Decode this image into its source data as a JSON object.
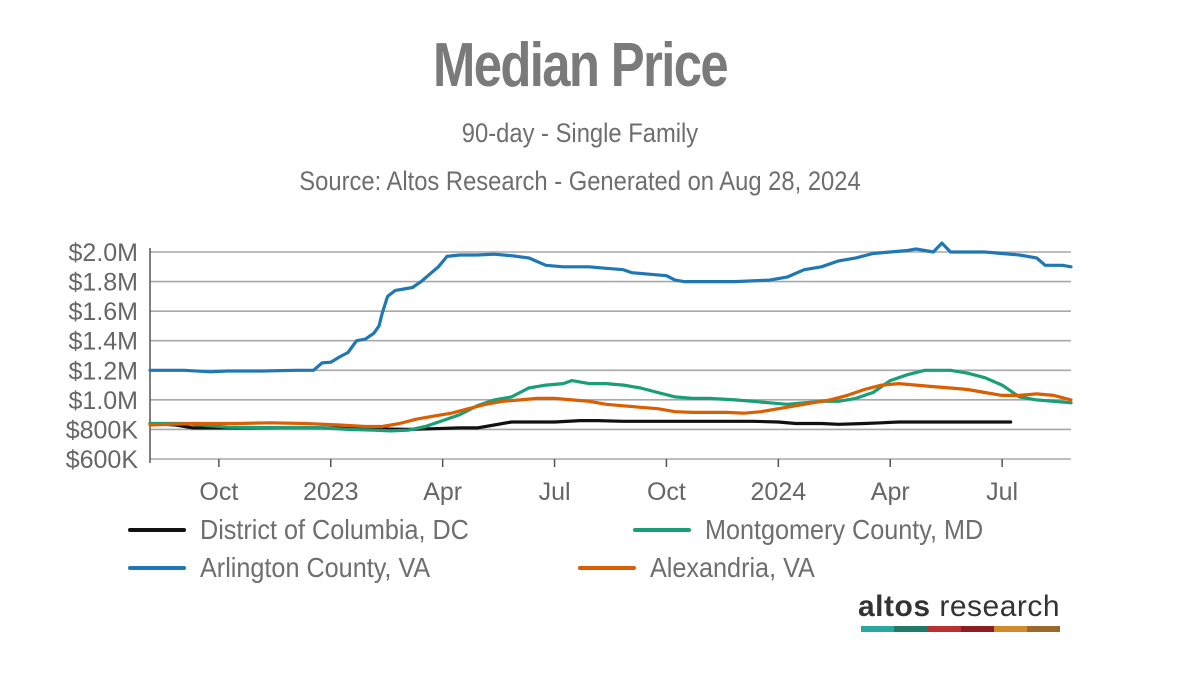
{
  "chart_data": {
    "type": "line",
    "title": "Median Price",
    "subtitle": "90-day - Single Family",
    "source": "Source: Altos Research - Generated on Aug 28, 2024",
    "xlabel": "",
    "ylabel": "",
    "grid": true,
    "ylim": [
      600000,
      2000000
    ],
    "yticks": [
      600000,
      800000,
      1000000,
      1200000,
      1400000,
      1600000,
      1800000,
      2000000
    ],
    "ytick_labels": [
      "$600K",
      "$800K",
      "$1.0M",
      "$1.2M",
      "$1.4M",
      "$1.6M",
      "$1.8M",
      "$2.0M"
    ],
    "xlim_week": [
      0,
      107
    ],
    "xticks": [
      {
        "label": "Oct",
        "week": 8
      },
      {
        "label": "2023",
        "week": 21
      },
      {
        "label": "Apr",
        "week": 34
      },
      {
        "label": "Jul",
        "week": 47
      },
      {
        "label": "Oct",
        "week": 60
      },
      {
        "label": "2024",
        "week": 73
      },
      {
        "label": "Apr",
        "week": 86
      },
      {
        "label": "Jul",
        "week": 99
      }
    ],
    "legend_position": "bottom",
    "series": [
      {
        "name": "District of Columbia, DC",
        "color": "#111111",
        "points": [
          [
            0,
            840000
          ],
          [
            3,
            830000
          ],
          [
            5,
            810000
          ],
          [
            9,
            810000
          ],
          [
            12,
            810000
          ],
          [
            20,
            810000
          ],
          [
            25,
            805000
          ],
          [
            30,
            800000
          ],
          [
            33,
            805000
          ],
          [
            36,
            810000
          ],
          [
            38,
            810000
          ],
          [
            40,
            830000
          ],
          [
            42,
            850000
          ],
          [
            47,
            850000
          ],
          [
            50,
            860000
          ],
          [
            52,
            860000
          ],
          [
            55,
            855000
          ],
          [
            60,
            855000
          ],
          [
            65,
            855000
          ],
          [
            70,
            855000
          ],
          [
            73,
            850000
          ],
          [
            75,
            840000
          ],
          [
            78,
            840000
          ],
          [
            80,
            835000
          ],
          [
            83,
            840000
          ],
          [
            85,
            845000
          ],
          [
            87,
            850000
          ],
          [
            92,
            850000
          ],
          [
            95,
            850000
          ],
          [
            99,
            850000
          ],
          [
            100,
            850000
          ]
        ]
      },
      {
        "name": "Montgomery County, MD",
        "color": "#1a9e77",
        "points": [
          [
            0,
            840000
          ],
          [
            4,
            840000
          ],
          [
            9,
            815000
          ],
          [
            15,
            810000
          ],
          [
            20,
            810000
          ],
          [
            23,
            800000
          ],
          [
            26,
            795000
          ],
          [
            28,
            790000
          ],
          [
            30,
            795000
          ],
          [
            32,
            820000
          ],
          [
            34,
            860000
          ],
          [
            36,
            900000
          ],
          [
            38,
            960000
          ],
          [
            40,
            1000000
          ],
          [
            42,
            1020000
          ],
          [
            44,
            1080000
          ],
          [
            46,
            1100000
          ],
          [
            48,
            1110000
          ],
          [
            49,
            1130000
          ],
          [
            51,
            1110000
          ],
          [
            53,
            1110000
          ],
          [
            55,
            1100000
          ],
          [
            57,
            1080000
          ],
          [
            59,
            1050000
          ],
          [
            61,
            1020000
          ],
          [
            63,
            1010000
          ],
          [
            65,
            1010000
          ],
          [
            68,
            1000000
          ],
          [
            70,
            990000
          ],
          [
            72,
            980000
          ],
          [
            74,
            970000
          ],
          [
            76,
            980000
          ],
          [
            78,
            990000
          ],
          [
            80,
            990000
          ],
          [
            82,
            1010000
          ],
          [
            84,
            1050000
          ],
          [
            86,
            1130000
          ],
          [
            88,
            1170000
          ],
          [
            90,
            1200000
          ],
          [
            93,
            1200000
          ],
          [
            95,
            1180000
          ],
          [
            97,
            1150000
          ],
          [
            99,
            1100000
          ],
          [
            101,
            1020000
          ],
          [
            103,
            1000000
          ],
          [
            105,
            990000
          ],
          [
            107,
            980000
          ]
        ]
      },
      {
        "name": "Arlington County, VA",
        "color": "#1f77b4",
        "points": [
          [
            0,
            1200000
          ],
          [
            4,
            1200000
          ],
          [
            7,
            1190000
          ],
          [
            9,
            1195000
          ],
          [
            13,
            1195000
          ],
          [
            17,
            1200000
          ],
          [
            19,
            1200000
          ],
          [
            20,
            1250000
          ],
          [
            21,
            1255000
          ],
          [
            22,
            1290000
          ],
          [
            23,
            1320000
          ],
          [
            24,
            1400000
          ],
          [
            25,
            1410000
          ],
          [
            26,
            1450000
          ],
          [
            26.6,
            1500000
          ],
          [
            27,
            1590000
          ],
          [
            27.6,
            1700000
          ],
          [
            28.5,
            1740000
          ],
          [
            29.5,
            1750000
          ],
          [
            30.5,
            1760000
          ],
          [
            31.5,
            1800000
          ],
          [
            32.5,
            1850000
          ],
          [
            33.5,
            1900000
          ],
          [
            34.5,
            1970000
          ],
          [
            36,
            1980000
          ],
          [
            38,
            1980000
          ],
          [
            40,
            1985000
          ],
          [
            42,
            1975000
          ],
          [
            44,
            1960000
          ],
          [
            46,
            1910000
          ],
          [
            48,
            1900000
          ],
          [
            51,
            1900000
          ],
          [
            53,
            1890000
          ],
          [
            55,
            1880000
          ],
          [
            56,
            1860000
          ],
          [
            58,
            1850000
          ],
          [
            60,
            1840000
          ],
          [
            61,
            1810000
          ],
          [
            62,
            1800000
          ],
          [
            68,
            1800000
          ],
          [
            72,
            1810000
          ],
          [
            74,
            1830000
          ],
          [
            76,
            1880000
          ],
          [
            78,
            1900000
          ],
          [
            80,
            1940000
          ],
          [
            82,
            1960000
          ],
          [
            84,
            1990000
          ],
          [
            86,
            2000000
          ],
          [
            88,
            2010000
          ],
          [
            89,
            2020000
          ],
          [
            91,
            2000000
          ],
          [
            92,
            2060000
          ],
          [
            93,
            2000000
          ],
          [
            95,
            2000000
          ],
          [
            97,
            2000000
          ],
          [
            99,
            1990000
          ],
          [
            101,
            1980000
          ],
          [
            103,
            1960000
          ],
          [
            104,
            1910000
          ],
          [
            106,
            1910000
          ],
          [
            107,
            1900000
          ]
        ]
      },
      {
        "name": "Alexandria, VA",
        "color": "#d95f02",
        "points": [
          [
            0,
            830000
          ],
          [
            5,
            840000
          ],
          [
            10,
            840000
          ],
          [
            14,
            845000
          ],
          [
            18,
            840000
          ],
          [
            22,
            830000
          ],
          [
            25,
            820000
          ],
          [
            27,
            820000
          ],
          [
            29,
            840000
          ],
          [
            31,
            870000
          ],
          [
            33,
            890000
          ],
          [
            35,
            910000
          ],
          [
            37,
            940000
          ],
          [
            39,
            970000
          ],
          [
            41,
            990000
          ],
          [
            43,
            1000000
          ],
          [
            45,
            1010000
          ],
          [
            47,
            1010000
          ],
          [
            49,
            1000000
          ],
          [
            51,
            990000
          ],
          [
            53,
            970000
          ],
          [
            55,
            960000
          ],
          [
            57,
            950000
          ],
          [
            59,
            940000
          ],
          [
            61,
            920000
          ],
          [
            63,
            915000
          ],
          [
            65,
            915000
          ],
          [
            67,
            915000
          ],
          [
            69,
            910000
          ],
          [
            71,
            920000
          ],
          [
            73,
            940000
          ],
          [
            75,
            960000
          ],
          [
            77,
            980000
          ],
          [
            79,
            1000000
          ],
          [
            81,
            1030000
          ],
          [
            83,
            1070000
          ],
          [
            85,
            1100000
          ],
          [
            87,
            1110000
          ],
          [
            89,
            1100000
          ],
          [
            91,
            1090000
          ],
          [
            93,
            1080000
          ],
          [
            95,
            1070000
          ],
          [
            97,
            1050000
          ],
          [
            99,
            1030000
          ],
          [
            101,
            1030000
          ],
          [
            103,
            1040000
          ],
          [
            105,
            1030000
          ],
          [
            107,
            1000000
          ]
        ]
      }
    ]
  },
  "legend": {
    "items": [
      {
        "label": "District of Columbia, DC",
        "color": "#111111"
      },
      {
        "label": "Montgomery County, MD",
        "color": "#1a9e77"
      },
      {
        "label": "Arlington County, VA",
        "color": "#1f77b4"
      },
      {
        "label": "Alexandria, VA",
        "color": "#d95f02"
      }
    ]
  },
  "logo": {
    "brand": "altos",
    "suffix": " research",
    "stripe_colors": [
      "#2aa8a0",
      "#1f7a6a",
      "#b83232",
      "#8a1e22",
      "#d28a2e",
      "#9a6a2a"
    ]
  }
}
